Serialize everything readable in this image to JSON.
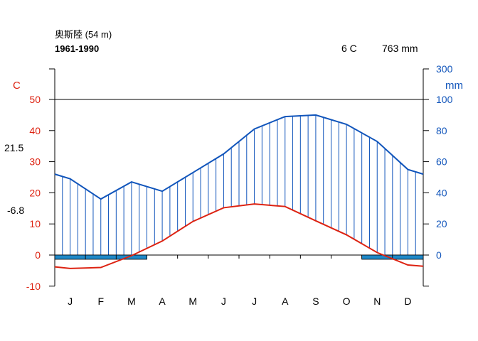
{
  "chart_data": {
    "type": "climate-diagram",
    "station": "奥斯陸 (54 m)",
    "period": "1961-1990",
    "annual_temperature": "6 C",
    "annual_precipitation": "763 mm",
    "temp_axis_unit": "C",
    "precip_axis_unit": "mm",
    "temp_ticks": [
      "-10",
      "0",
      "10",
      "20",
      "30",
      "40",
      "50"
    ],
    "precip_ticks_left": [
      "0",
      "20",
      "40",
      "60",
      "80",
      "100"
    ],
    "precip_top_tick": "300",
    "mean_daily_max_warmest": "21.5",
    "mean_daily_min_coldest": "-6.8",
    "months": [
      "J",
      "F",
      "M",
      "A",
      "M",
      "J",
      "J",
      "A",
      "S",
      "O",
      "N",
      "D"
    ],
    "temp_ylim": [
      -10,
      50
    ],
    "precip_ylim": [
      0,
      300
    ],
    "x": [
      0,
      0.5,
      1.5,
      2.5,
      3.5,
      4.5,
      5.5,
      6.5,
      7.5,
      8.5,
      9.5,
      10.5,
      11.5,
      12
    ],
    "temperature": [
      -3.8,
      -4.3,
      -4.0,
      -0.2,
      4.5,
      10.8,
      15.2,
      16.4,
      15.6,
      11.0,
      6.5,
      0.8,
      -3.2,
      -3.6
    ],
    "precipitation": [
      52,
      49,
      36,
      47,
      41,
      53,
      65,
      81,
      89,
      90,
      84,
      73,
      55,
      52
    ],
    "frost_bars": [
      {
        "start": 0,
        "end": 3,
        "kind": "certain"
      },
      {
        "start": 10,
        "end": 12,
        "kind": "certain"
      }
    ],
    "colors": {
      "temperature": "#dd2211",
      "precipitation": "#1155bb",
      "frost": "#1e88c8"
    }
  }
}
